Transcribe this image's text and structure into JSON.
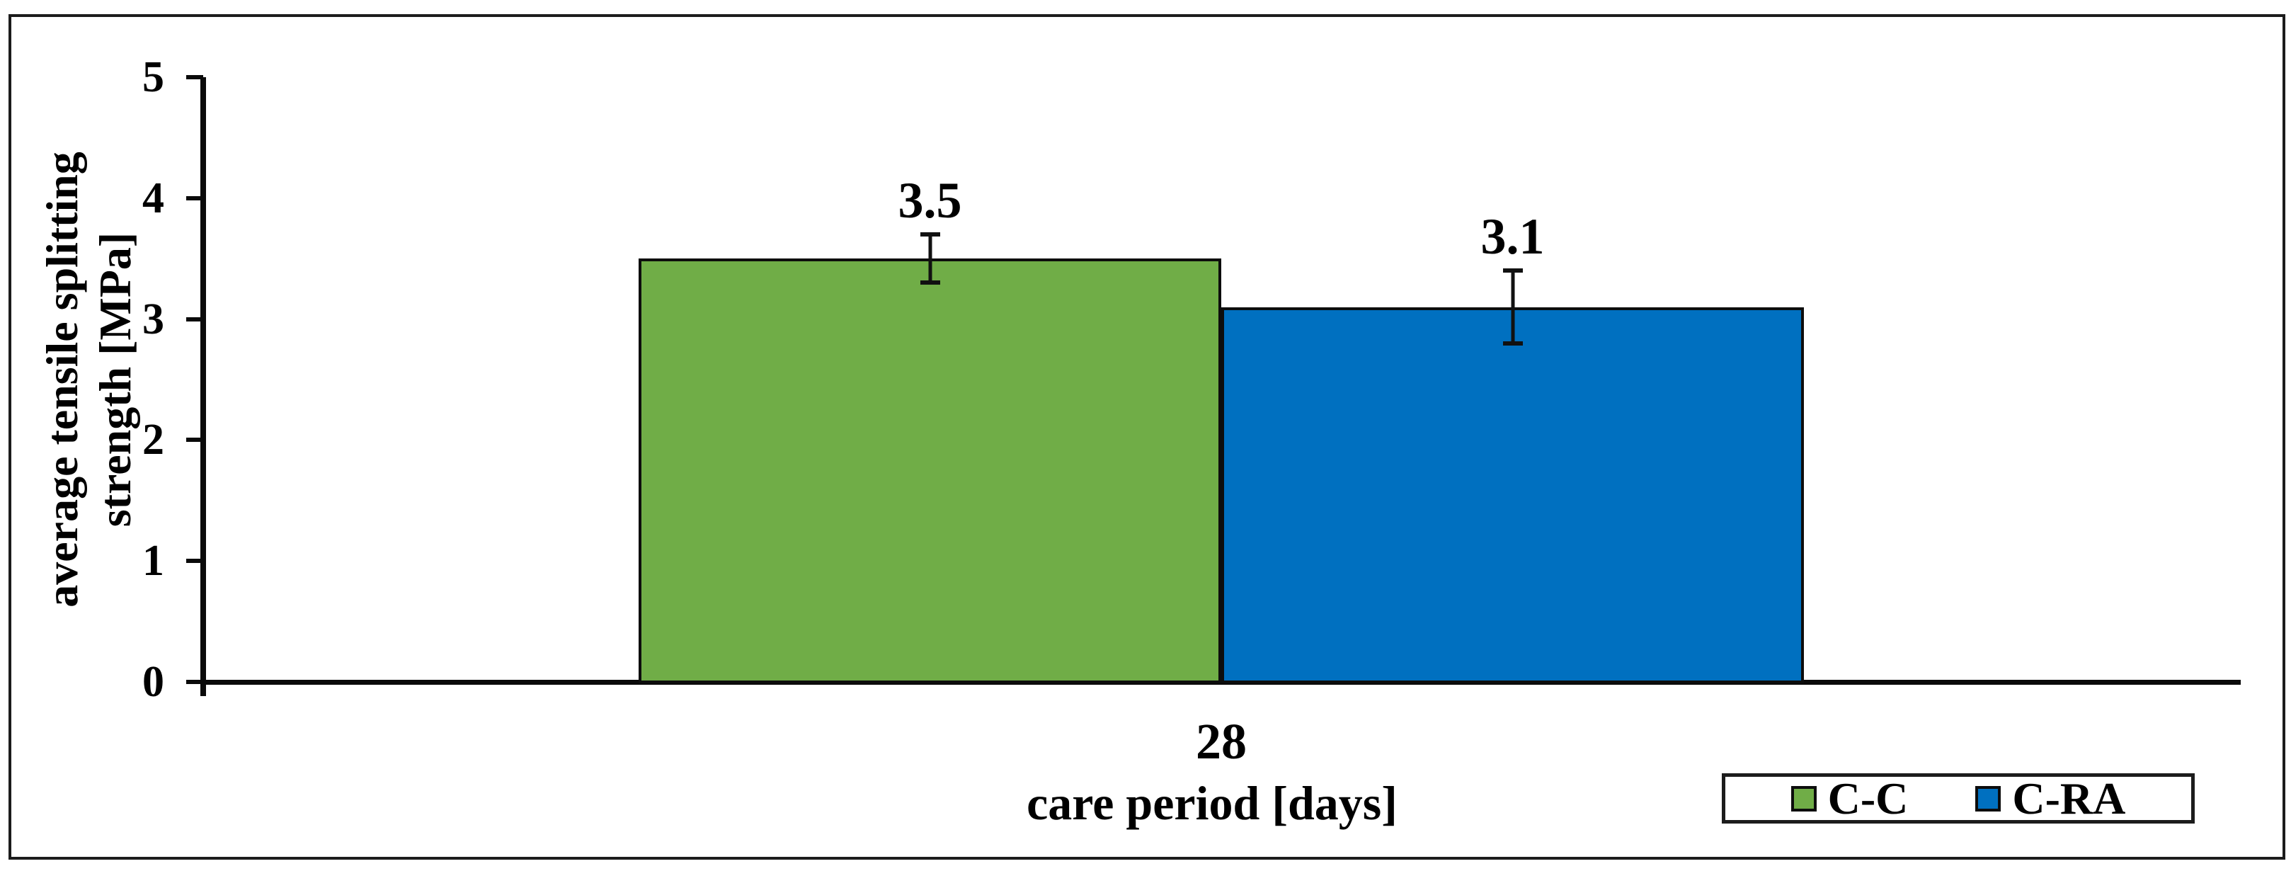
{
  "chart_data": {
    "type": "bar",
    "title": "",
    "categories": [
      "28"
    ],
    "series": [
      {
        "name": "C-C",
        "color": "#70AD47",
        "values": [
          3.5
        ],
        "errors": [
          0.2
        ],
        "labels": [
          "3.5"
        ]
      },
      {
        "name": "C-RA",
        "color": "#0070C0",
        "values": [
          3.1
        ],
        "errors": [
          0.3
        ],
        "labels": [
          "3.1"
        ]
      }
    ],
    "xlabel": "care period [days]",
    "ylabel": "average tensile splitting strength [MPa]",
    "ylabel_line1": "average tensile splitting",
    "ylabel_line2": "strength [MPa]",
    "ylim": [
      0,
      5
    ],
    "yticks": [
      "0",
      "1",
      "2",
      "3",
      "4",
      "5"
    ],
    "grid": false,
    "error_bars": true,
    "legend_position": "bottom-right"
  },
  "legend": {
    "items": [
      {
        "label": "C-C",
        "color": "#70AD47"
      },
      {
        "label": "C-RA",
        "color": "#0070C0"
      }
    ]
  },
  "colors": {
    "background": "#ffffff",
    "frame": "#1c1c1c",
    "axis": "#0a0a0a",
    "bar_border": "#0d0d0d",
    "green": "#70AD47",
    "blue": "#0070C0"
  }
}
